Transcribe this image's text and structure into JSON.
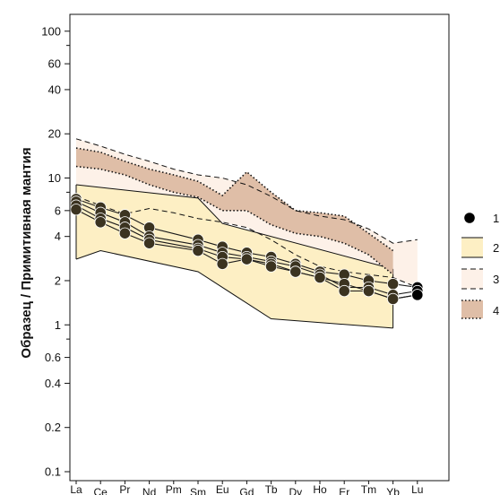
{
  "chart_data": {
    "type": "line",
    "title": "",
    "xlabel": "",
    "ylabel": "Образец / Примитивная мантия",
    "yscale": "log",
    "ylim": [
      0.1,
      110
    ],
    "grid": false,
    "legend_position": "right",
    "x": [
      "La",
      "Ce",
      "Pr",
      "Nd",
      "Pm",
      "Sm",
      "Eu",
      "Gd",
      "Tb",
      "Dy",
      "Ho",
      "Er",
      "Tm",
      "Yb",
      "Lu"
    ],
    "y_ticks": [
      0.1,
      0.2,
      0.4,
      0.6,
      1,
      2,
      4,
      6,
      10,
      20,
      40,
      60,
      100
    ],
    "y_tick_labels": [
      "0.1",
      "0.2",
      "0.4",
      "0.6",
      "1",
      "2",
      "4",
      "6",
      "10",
      "20",
      "40",
      "60",
      "100"
    ],
    "y_minor_ticks": [
      0.8,
      8,
      80
    ],
    "series": [
      {
        "values": [
          7.2,
          6.3,
          5.6,
          4.6,
          null,
          3.8,
          3.4,
          3.1,
          2.9,
          2.6,
          2.3,
          2.2,
          2.0,
          1.9,
          1.8
        ]
      },
      {
        "values": [
          6.9,
          5.8,
          5.0,
          4.0,
          null,
          3.5,
          3.1,
          2.9,
          2.7,
          2.5,
          2.2,
          1.8,
          1.8,
          1.6,
          1.7
        ]
      },
      {
        "values": [
          6.5,
          5.3,
          4.6,
          3.8,
          null,
          3.3,
          2.9,
          2.8,
          2.6,
          2.3,
          2.1,
          1.9,
          1.7,
          1.5,
          1.6
        ]
      },
      {
        "values": [
          6.1,
          5.0,
          4.2,
          3.6,
          null,
          3.2,
          2.6,
          2.8,
          2.5,
          2.3,
          2.1,
          1.7,
          1.7,
          1.5,
          1.6
        ]
      }
    ],
    "fields": [
      {
        "legend": "2",
        "color": "#fdefc4",
        "upper_x": [
          "La",
          "Sm",
          "Eu",
          "Yb"
        ],
        "upper_y": [
          9.0,
          7.3,
          4.9,
          2.4
        ],
        "lower_x": [
          "La",
          "Ce",
          "Sm",
          "Tb",
          "Yb"
        ],
        "lower_y": [
          2.8,
          3.2,
          2.3,
          1.1,
          0.95
        ]
      },
      {
        "legend": "3",
        "color": "#fdf1e8",
        "upper_x": [
          "La",
          "Ce",
          "Pr",
          "Nd",
          "Pm",
          "Sm",
          "Eu",
          "Gd",
          "Tb",
          "Dy",
          "Ho",
          "Er",
          "Tm",
          "Yb",
          "Lu"
        ],
        "upper_y": [
          18.5,
          16.5,
          14.5,
          13.0,
          11.5,
          10.5,
          10.0,
          9.0,
          7.5,
          6.0,
          5.5,
          5.2,
          4.5,
          3.6,
          3.8
        ],
        "lower_x": [
          "La",
          "Ce",
          "Pr",
          "Nd",
          "Pm",
          "Sm",
          "Eu",
          "Gd",
          "Tb",
          "Dy",
          "Ho",
          "Er",
          "Tm",
          "Yb",
          "Lu"
        ],
        "lower_y": [
          7.5,
          6.5,
          5.7,
          6.2,
          5.8,
          5.3,
          5.0,
          4.6,
          3.8,
          3.0,
          2.5,
          2.3,
          2.2,
          2.1,
          1.8
        ]
      },
      {
        "legend": "4",
        "color": "#dfbea7",
        "upper_x": [
          "La",
          "Ce",
          "Pr",
          "Nd",
          "Pm",
          "Sm",
          "Eu",
          "Gd",
          "Tb",
          "Dy",
          "Ho",
          "Er",
          "Tm",
          "Yb"
        ],
        "upper_y": [
          16.0,
          15.0,
          13.0,
          11.5,
          10.5,
          9.5,
          7.6,
          11.0,
          8.0,
          6.0,
          5.8,
          5.5,
          4.2,
          3.2
        ],
        "lower_x": [
          "La",
          "Ce",
          "Pr",
          "Nd",
          "Pm",
          "Sm",
          "Eu",
          "Gd",
          "Tb",
          "Dy",
          "Ho",
          "Er",
          "Tm",
          "Yb"
        ],
        "lower_y": [
          12.0,
          11.5,
          10.5,
          9.0,
          8.0,
          7.4,
          6.0,
          6.0,
          4.8,
          4.2,
          4.0,
          3.6,
          3.0,
          2.2
        ]
      }
    ],
    "legend": [
      "1",
      "2",
      "3",
      "4"
    ]
  }
}
